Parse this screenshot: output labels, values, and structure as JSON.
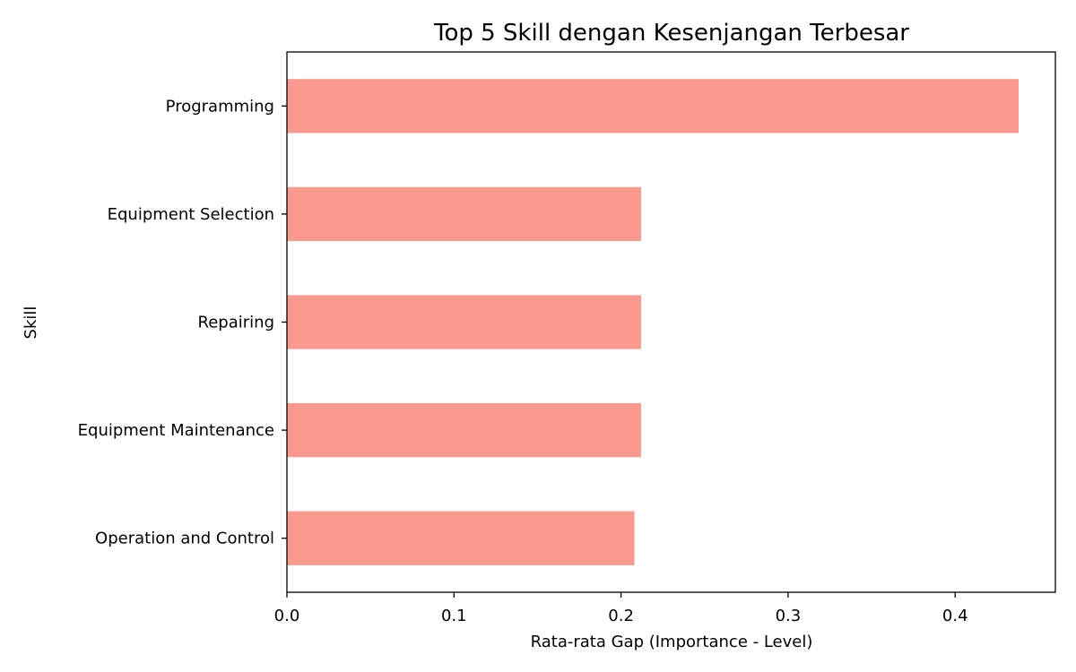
{
  "chart_data": {
    "type": "bar",
    "orientation": "horizontal",
    "title": "Top 5 Skill dengan Kesenjangan Terbesar",
    "xlabel": "Rata-rata Gap (Importance - Level)",
    "ylabel": "Skill",
    "categories": [
      "Programming",
      "Equipment Selection",
      "Repairing",
      "Equipment Maintenance",
      "Operation and Control"
    ],
    "values": [
      0.438,
      0.212,
      0.212,
      0.212,
      0.208
    ],
    "xlim": [
      0.0,
      0.46
    ],
    "xticks": [
      "0.0",
      "0.1",
      "0.2",
      "0.3",
      "0.4"
    ],
    "bar_color": "#fa9a8f",
    "grid": false,
    "legend": "none"
  }
}
